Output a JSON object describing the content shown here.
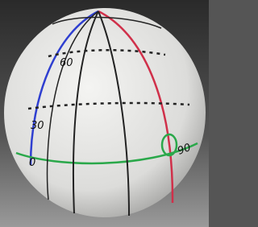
{
  "labels": [
    "60",
    "30",
    "0",
    "90"
  ]
}
